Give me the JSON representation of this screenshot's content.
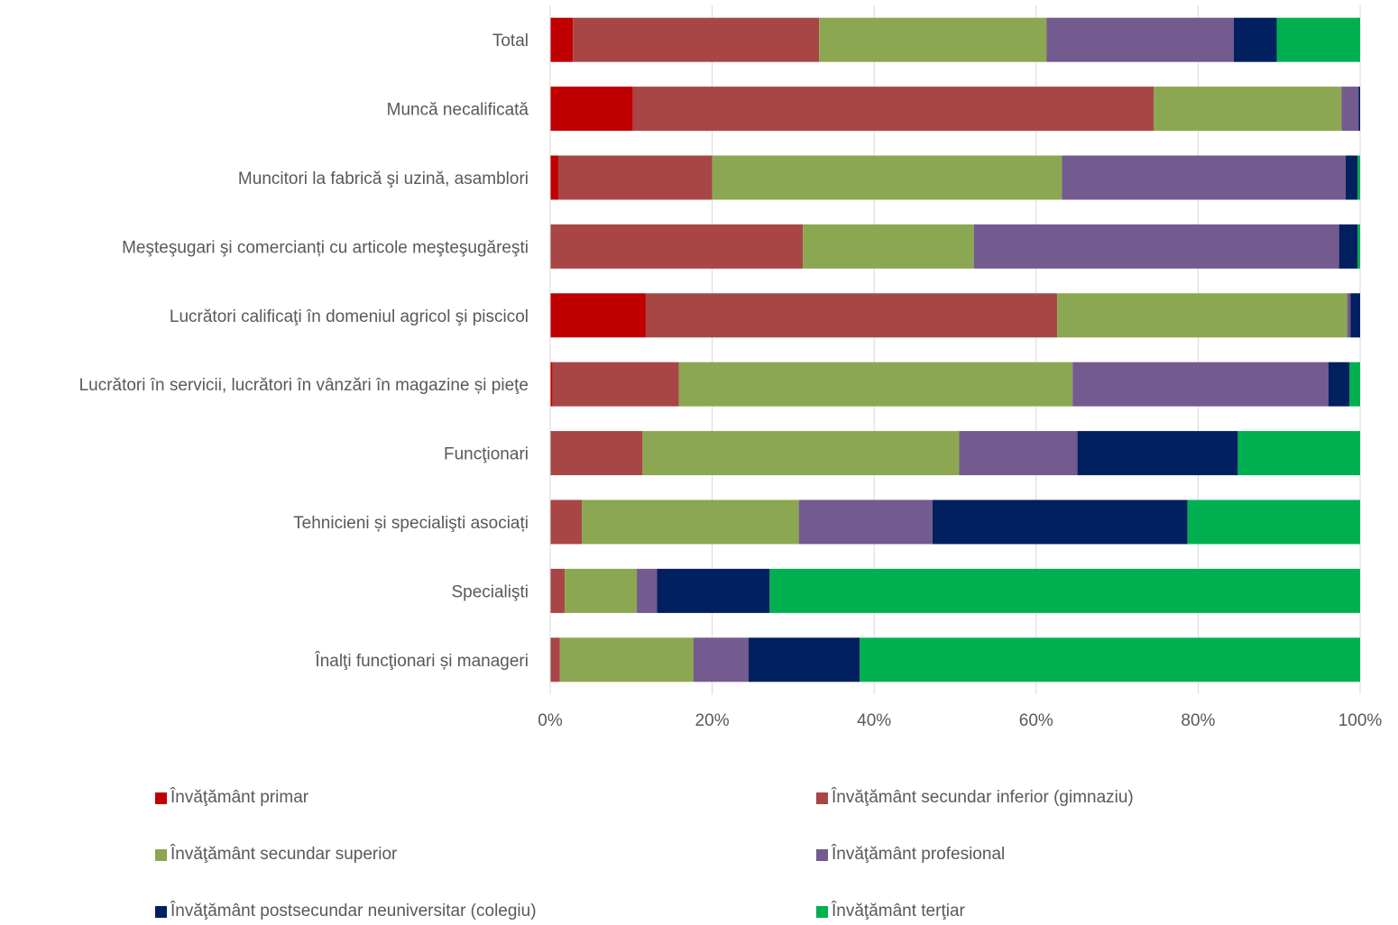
{
  "chart_data": {
    "type": "bar",
    "orientation": "horizontal",
    "stacked": "percent",
    "categories": [
      "Total",
      "Muncă necalificată",
      "Muncitori la fabrică şi uzină, asamblori",
      "Meşteşugari şi comercianți cu articole meşteşugăreşti",
      "Lucrători calificaţi în domeniul agricol şi piscicol",
      "Lucrători în servicii, lucrători în vânzări în magazine și pieţe",
      "Funcţionari",
      "Tehnicieni și specialişti asociați",
      "Specialişti",
      "Înalţi funcţionari și manageri"
    ],
    "series": [
      {
        "name": "Învăţământ primar",
        "color": "#c00000",
        "values": [
          2.8,
          10.2,
          1.0,
          0.0,
          11.8,
          0.3,
          0.0,
          0.0,
          0.0,
          0.0
        ]
      },
      {
        "name": "Învăţământ secundar inferior (gimnaziu)",
        "color": "#a84646",
        "values": [
          30.4,
          64.3,
          19.0,
          31.2,
          50.8,
          15.6,
          11.4,
          3.9,
          1.8,
          1.2
        ]
      },
      {
        "name": "Învăţământ secundar superior",
        "color": "#8ba751",
        "values": [
          28.1,
          23.2,
          43.2,
          21.1,
          35.8,
          48.6,
          39.1,
          26.8,
          8.9,
          16.5
        ]
      },
      {
        "name": "Învăţământ profesional",
        "color": "#735a8f",
        "values": [
          23.1,
          2.1,
          35.0,
          45.1,
          0.4,
          31.6,
          14.6,
          16.5,
          2.5,
          6.8
        ]
      },
      {
        "name": "Învăţământ postsecundar neuniversitar (colegiu)",
        "color": "#002060",
        "values": [
          5.3,
          0.2,
          1.5,
          2.3,
          1.2,
          2.6,
          19.8,
          31.5,
          13.9,
          13.7
        ]
      },
      {
        "name": "Învăţământ terţiar",
        "color": "#00b050",
        "values": [
          10.3,
          0.0,
          0.3,
          0.3,
          0.0,
          1.3,
          15.1,
          21.3,
          72.9,
          61.8
        ]
      }
    ],
    "xlim": [
      0,
      100
    ],
    "x_ticks": [
      "0%",
      "20%",
      "40%",
      "60%",
      "80%",
      "100%"
    ],
    "grid": true,
    "legend_position": "bottom"
  }
}
